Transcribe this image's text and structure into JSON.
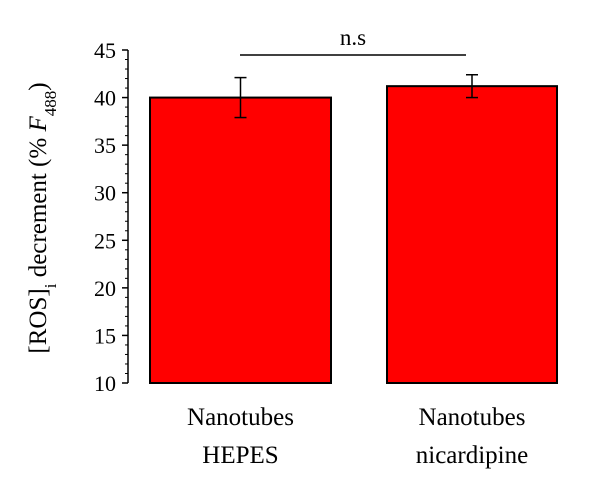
{
  "chart_data": {
    "type": "bar",
    "categories": [
      [
        "Nanotubes",
        "HEPES"
      ],
      [
        "Nanotubes",
        "nicardipine"
      ]
    ],
    "values": [
      40.0,
      41.2
    ],
    "errors": [
      2.1,
      1.2
    ],
    "ylabel": {
      "prefix": "[ROS]",
      "prefix_sub": "i",
      "middle": " decrement (% ",
      "var": "F",
      "var_sub": "488",
      "suffix": ")"
    },
    "ylim": [
      10,
      45
    ],
    "yticks": [
      "10",
      "15",
      "20",
      "25",
      "30",
      "35",
      "40",
      "45"
    ],
    "annotation": "n.s",
    "bar_color": "#ff0000",
    "grid": false
  }
}
